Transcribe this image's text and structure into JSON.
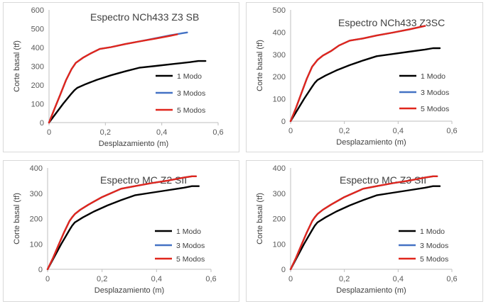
{
  "chart_data": [
    {
      "type": "line",
      "title": "Espectro NCh433 Z3 SB",
      "xlabel": "Desplazamiento (m)",
      "ylabel": "Corte basal (tf)",
      "xlim": [
        0,
        0.6
      ],
      "ylim": [
        0,
        600
      ],
      "xticks": [
        "0",
        "0,2",
        "0,4",
        "0,6"
      ],
      "yticks": [
        "0",
        "100",
        "200",
        "300",
        "400",
        "500",
        "600"
      ],
      "xtick_values": [
        0,
        0.2,
        0.4,
        0.6
      ],
      "ytick_values": [
        0,
        100,
        200,
        300,
        400,
        500,
        600
      ],
      "legend": "right",
      "series": [
        {
          "name": "1 Modo",
          "color": "#000000",
          "x": [
            0,
            0.02,
            0.05,
            0.08,
            0.09,
            0.1,
            0.13,
            0.17,
            0.22,
            0.27,
            0.32,
            0.38,
            0.44,
            0.5,
            0.53,
            0.555
          ],
          "y": [
            0,
            40,
            100,
            155,
            172,
            185,
            205,
            228,
            252,
            273,
            292,
            302,
            312,
            322,
            328,
            328
          ]
        },
        {
          "name": "3 Modos",
          "color": "#4472c4",
          "x": [
            0,
            0.02,
            0.04,
            0.06,
            0.08,
            0.095,
            0.12,
            0.15,
            0.18,
            0.22,
            0.27,
            0.32,
            0.38,
            0.43,
            0.47,
            0.49
          ],
          "y": [
            0,
            75,
            150,
            225,
            285,
            318,
            345,
            370,
            392,
            402,
            418,
            432,
            450,
            465,
            475,
            480
          ]
        },
        {
          "name": "5 Modos",
          "color": "#e0261c",
          "x": [
            0,
            0.02,
            0.04,
            0.06,
            0.08,
            0.095,
            0.12,
            0.15,
            0.18,
            0.22,
            0.27,
            0.32,
            0.38,
            0.43,
            0.455
          ],
          "y": [
            0,
            75,
            150,
            225,
            285,
            318,
            345,
            370,
            392,
            402,
            418,
            432,
            448,
            462,
            470
          ]
        }
      ]
    },
    {
      "type": "line",
      "title": "Espectro NCh433 Z3SC",
      "xlabel": "Desplazamiento (m)",
      "ylabel": "Corte basal (tf)",
      "xlim": [
        0,
        0.6
      ],
      "ylim": [
        0,
        500
      ],
      "xticks": [
        "0",
        "0,2",
        "0,4",
        "0,6"
      ],
      "yticks": [
        "0",
        "100",
        "200",
        "300",
        "400",
        "500"
      ],
      "xtick_values": [
        0,
        0.2,
        0.4,
        0.6
      ],
      "ytick_values": [
        0,
        100,
        200,
        300,
        400,
        500
      ],
      "legend": "right",
      "series": [
        {
          "name": "1 Modo",
          "color": "#000000",
          "x": [
            0,
            0.02,
            0.05,
            0.08,
            0.09,
            0.1,
            0.13,
            0.17,
            0.22,
            0.27,
            0.32,
            0.38,
            0.44,
            0.5,
            0.53,
            0.555
          ],
          "y": [
            0,
            40,
            100,
            155,
            172,
            185,
            205,
            228,
            252,
            273,
            292,
            302,
            312,
            322,
            328,
            328
          ]
        },
        {
          "name": "3 Modos",
          "color": "#4472c4",
          "x": [
            0,
            0.02,
            0.04,
            0.06,
            0.08,
            0.1,
            0.12,
            0.15,
            0.18,
            0.22,
            0.27,
            0.32,
            0.38,
            0.44,
            0.5
          ],
          "y": [
            0,
            60,
            125,
            190,
            245,
            275,
            295,
            315,
            340,
            362,
            372,
            385,
            398,
            412,
            428
          ]
        },
        {
          "name": "5 Modos",
          "color": "#e0261c",
          "x": [
            0,
            0.02,
            0.04,
            0.06,
            0.08,
            0.1,
            0.12,
            0.15,
            0.18,
            0.22,
            0.27,
            0.32,
            0.38,
            0.44,
            0.5
          ],
          "y": [
            0,
            60,
            125,
            190,
            245,
            275,
            295,
            315,
            340,
            362,
            372,
            385,
            398,
            412,
            428
          ]
        }
      ]
    },
    {
      "type": "line",
      "title": "Espectro MC Z2 SII",
      "xlabel": "Desplazamiento (m)",
      "ylabel": "Corte basal (tf)",
      "xlim": [
        0,
        0.6
      ],
      "ylim": [
        0,
        400
      ],
      "xticks": [
        "0",
        "0,2",
        "0,4",
        "0,6"
      ],
      "yticks": [
        "0",
        "100",
        "200",
        "300",
        "400"
      ],
      "xtick_values": [
        0,
        0.2,
        0.4,
        0.6
      ],
      "ytick_values": [
        0,
        100,
        200,
        300,
        400
      ],
      "legend": "right",
      "series": [
        {
          "name": "1 Modo",
          "color": "#000000",
          "x": [
            0,
            0.02,
            0.05,
            0.08,
            0.09,
            0.1,
            0.13,
            0.17,
            0.22,
            0.27,
            0.32,
            0.38,
            0.44,
            0.5,
            0.53,
            0.555
          ],
          "y": [
            0,
            40,
            100,
            155,
            172,
            185,
            205,
            228,
            252,
            273,
            292,
            302,
            312,
            322,
            328,
            328
          ]
        },
        {
          "name": "3 Modos",
          "color": "#4472c4",
          "x": [
            0,
            0.02,
            0.04,
            0.06,
            0.08,
            0.09,
            0.1,
            0.12,
            0.15,
            0.2,
            0.27,
            0.32,
            0.38,
            0.44,
            0.5,
            0.53,
            0.545
          ],
          "y": [
            0,
            45,
            95,
            145,
            190,
            205,
            218,
            235,
            255,
            285,
            318,
            328,
            340,
            350,
            362,
            367,
            367
          ]
        },
        {
          "name": "5 Modos",
          "color": "#e0261c",
          "x": [
            0,
            0.02,
            0.04,
            0.06,
            0.08,
            0.09,
            0.1,
            0.12,
            0.15,
            0.2,
            0.27,
            0.32,
            0.38,
            0.44,
            0.5,
            0.53,
            0.545
          ],
          "y": [
            0,
            45,
            95,
            145,
            190,
            205,
            218,
            235,
            255,
            285,
            318,
            328,
            340,
            350,
            362,
            367,
            367
          ]
        }
      ]
    },
    {
      "type": "line",
      "title": "Espectro MC Z3 SII",
      "xlabel": "Desplazamiento (m)",
      "ylabel": "Corte basal (tf)",
      "xlim": [
        0,
        0.6
      ],
      "ylim": [
        0,
        400
      ],
      "xticks": [
        "0",
        "0,2",
        "0,4",
        "0,6"
      ],
      "yticks": [
        "0",
        "100",
        "200",
        "300",
        "400"
      ],
      "xtick_values": [
        0,
        0.2,
        0.4,
        0.6
      ],
      "ytick_values": [
        0,
        100,
        200,
        300,
        400
      ],
      "legend": "right",
      "series": [
        {
          "name": "1 Modo",
          "color": "#000000",
          "x": [
            0,
            0.02,
            0.05,
            0.08,
            0.09,
            0.1,
            0.13,
            0.17,
            0.22,
            0.27,
            0.32,
            0.38,
            0.44,
            0.5,
            0.53,
            0.555
          ],
          "y": [
            0,
            40,
            100,
            155,
            172,
            185,
            205,
            228,
            252,
            273,
            292,
            302,
            312,
            322,
            328,
            328
          ]
        },
        {
          "name": "3 Modos",
          "color": "#4472c4",
          "x": [
            0,
            0.02,
            0.04,
            0.06,
            0.08,
            0.09,
            0.1,
            0.12,
            0.15,
            0.2,
            0.27,
            0.32,
            0.38,
            0.44,
            0.5,
            0.53,
            0.545
          ],
          "y": [
            0,
            45,
            95,
            145,
            190,
            205,
            218,
            235,
            255,
            285,
            318,
            328,
            340,
            350,
            362,
            367,
            367
          ]
        },
        {
          "name": "5 Modos",
          "color": "#e0261c",
          "x": [
            0,
            0.02,
            0.04,
            0.06,
            0.08,
            0.09,
            0.1,
            0.12,
            0.15,
            0.2,
            0.27,
            0.32,
            0.38,
            0.44,
            0.5,
            0.53,
            0.545
          ],
          "y": [
            0,
            45,
            95,
            145,
            190,
            205,
            218,
            235,
            255,
            285,
            318,
            328,
            340,
            350,
            362,
            367,
            367
          ]
        }
      ]
    }
  ]
}
